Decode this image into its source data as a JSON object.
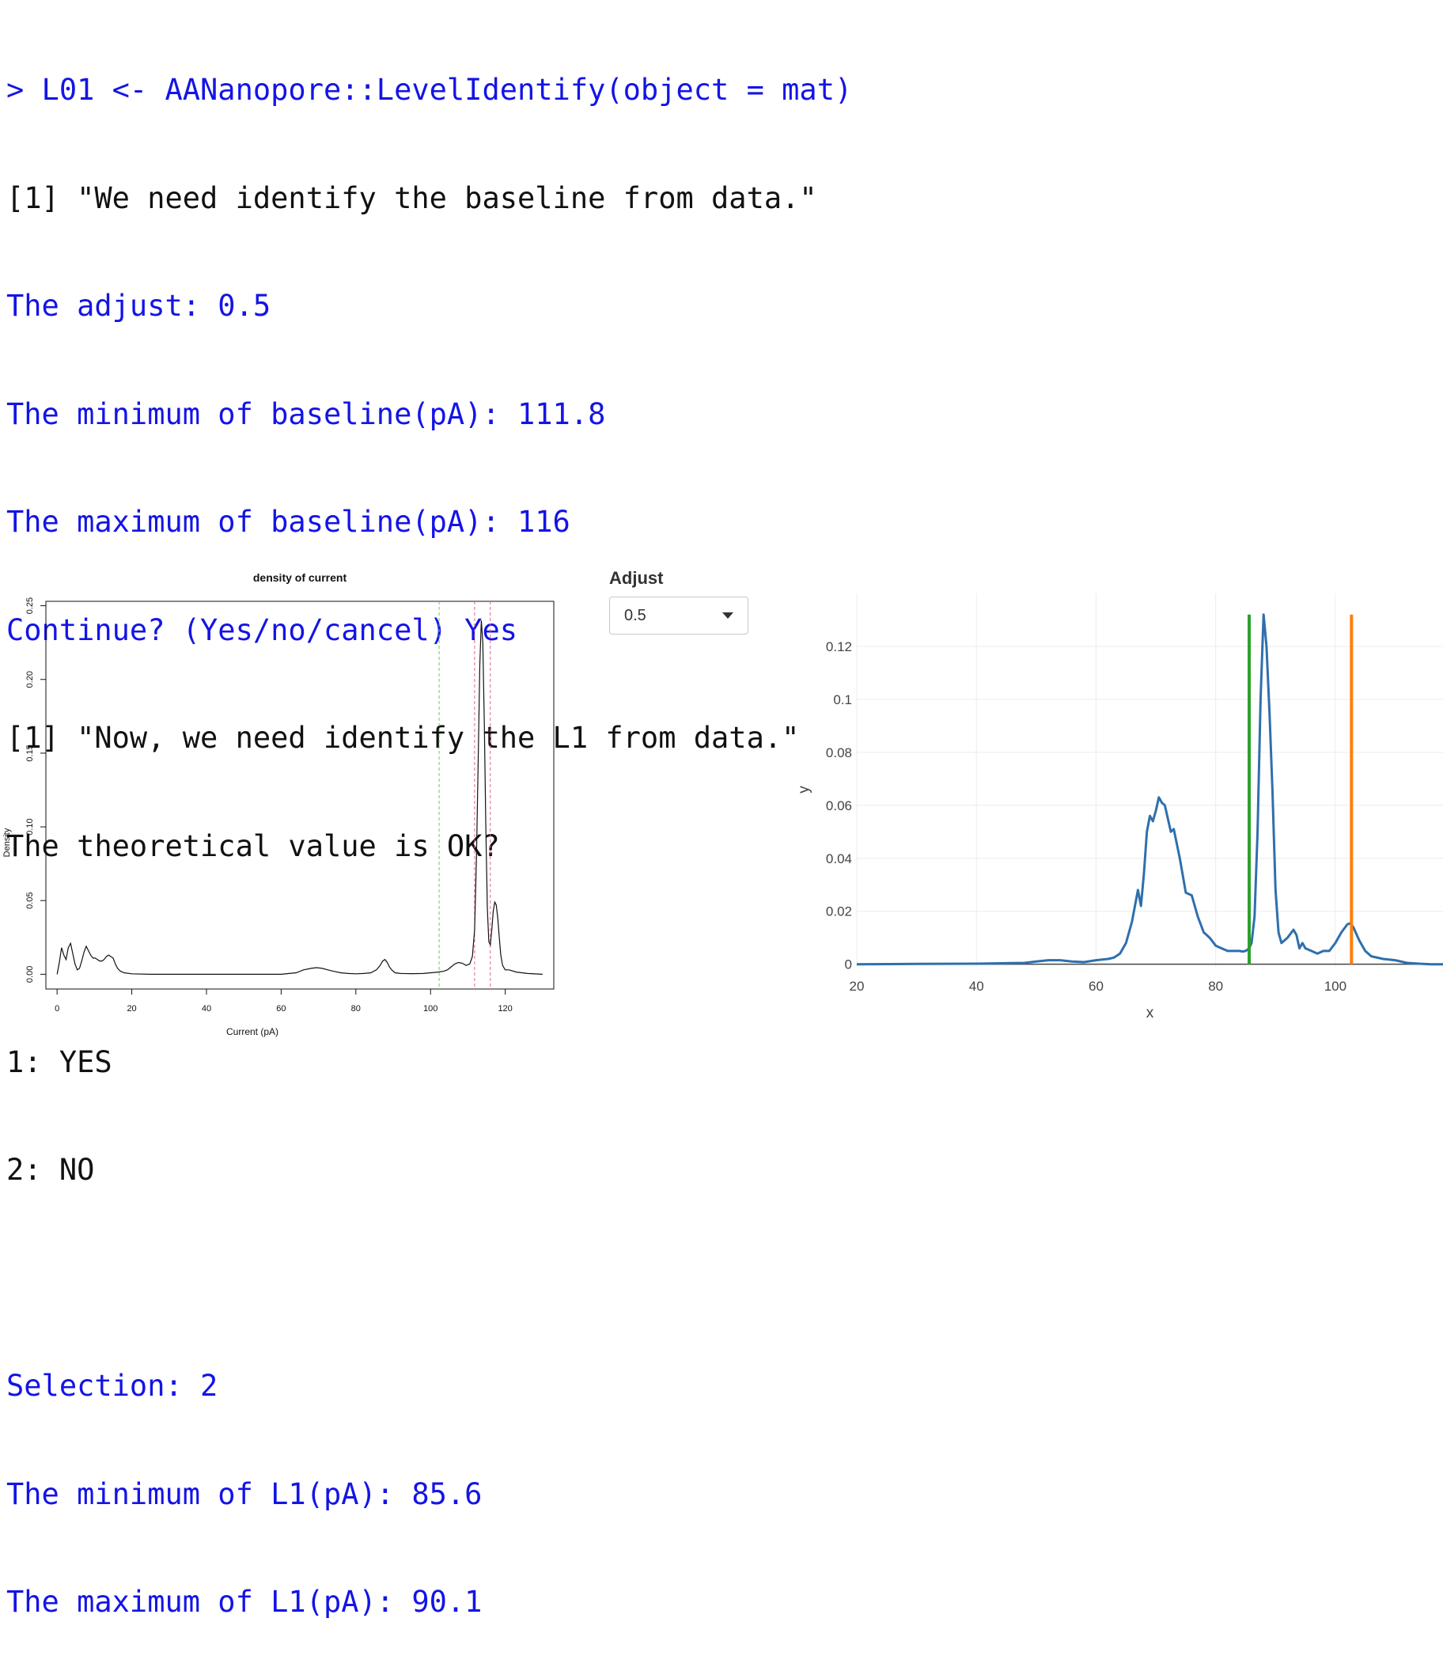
{
  "console": {
    "lines": [
      {
        "text": "> L01 <- AANanopore::LevelIdentify(object = mat)",
        "color": "#1414e6"
      },
      {
        "text": "[1] \"We need identify the baseline from data.\"",
        "color": "#111111"
      },
      {
        "text": "The adjust: 0.5",
        "color": "#1414e6"
      },
      {
        "text": "The minimum of baseline(pA): 111.8",
        "color": "#1414e6"
      },
      {
        "text": "The maximum of baseline(pA): 116",
        "color": "#1414e6"
      },
      {
        "text": "Continue? (Yes/no/cancel) Yes",
        "color": "#1414e6"
      },
      {
        "text": "[1] \"Now, we need identify the L1 from data.\"",
        "color": "#111111"
      },
      {
        "text": "The theoretical value is OK?",
        "color": "#111111"
      },
      {
        "text": "",
        "color": "#111111"
      },
      {
        "text": "1: YES",
        "color": "#111111"
      },
      {
        "text": "2: NO",
        "color": "#111111"
      },
      {
        "text": "",
        "color": "#111111"
      },
      {
        "text": "Selection: 2",
        "color": "#1414e6"
      },
      {
        "text": "The minimum of L1(pA): 85.6",
        "color": "#1414e6"
      },
      {
        "text": "The maximum of L1(pA): 90.1",
        "color": "#1414e6"
      }
    ]
  },
  "adjust_control": {
    "label": "Adjust",
    "selected": "0.5"
  },
  "chart_data": [
    {
      "type": "line",
      "title": "density of current",
      "xlabel": "Current (pA)",
      "ylabel": "Density",
      "xlim": [
        -3,
        133
      ],
      "ylim": [
        -0.01,
        0.253
      ],
      "x_ticks": [
        0,
        20,
        40,
        60,
        80,
        100,
        120
      ],
      "y_ticks": [
        0.0,
        0.05,
        0.1,
        0.15,
        0.2,
        0.25
      ],
      "y_tick_labels": [
        "0.00",
        "0.05",
        "0.10",
        "0.15",
        "0.20",
        "0.25"
      ],
      "grid": false,
      "vlines": [
        {
          "x": 102.3,
          "color": "#66cc66",
          "style": "dashed"
        },
        {
          "x": 111.8,
          "color": "#dd6699",
          "style": "dashed"
        },
        {
          "x": 116.0,
          "color": "#dd6699",
          "style": "dashed"
        }
      ],
      "series": [
        {
          "color": "#111111",
          "x": [
            0,
            0.6,
            1.2,
            1.8,
            2.4,
            3.0,
            3.6,
            4.2,
            4.8,
            5.4,
            6.0,
            6.6,
            7.2,
            7.8,
            8.4,
            9.0,
            9.6,
            10.2,
            10.8,
            11.4,
            12.0,
            12.6,
            13.2,
            13.8,
            14.4,
            15.0,
            15.6,
            16.2,
            17.0,
            18.0,
            20,
            25,
            30,
            40,
            50,
            60,
            64,
            66,
            68,
            69.5,
            71,
            72.5,
            74,
            76,
            78,
            80,
            82,
            84,
            85.5,
            86.5,
            87.2,
            87.8,
            88.4,
            89.0,
            89.6,
            90.5,
            92,
            95,
            98,
            100,
            102,
            103.5,
            104.5,
            105.5,
            106.5,
            107.5,
            108.5,
            109.5,
            110.5,
            111.2,
            111.8,
            112.3,
            112.8,
            113.2,
            113.6,
            114.0,
            114.4,
            114.8,
            115.2,
            115.6,
            116.0,
            116.4,
            116.8,
            117.2,
            117.6,
            118.0,
            118.4,
            118.8,
            119.3,
            120,
            121,
            123,
            126,
            130
          ],
          "y": [
            0.0,
            0.008,
            0.018,
            0.013,
            0.01,
            0.018,
            0.021,
            0.014,
            0.007,
            0.003,
            0.004,
            0.009,
            0.015,
            0.019,
            0.016,
            0.013,
            0.011,
            0.011,
            0.01,
            0.009,
            0.009,
            0.01,
            0.012,
            0.013,
            0.012,
            0.011,
            0.007,
            0.004,
            0.002,
            0.001,
            0.0003,
            0.0,
            0.0,
            0.0,
            0.0,
            0.0,
            0.001,
            0.003,
            0.004,
            0.0045,
            0.004,
            0.003,
            0.002,
            0.001,
            0.0005,
            0.0003,
            0.0005,
            0.001,
            0.003,
            0.006,
            0.009,
            0.01,
            0.008,
            0.005,
            0.003,
            0.001,
            0.0005,
            0.0004,
            0.0005,
            0.001,
            0.0015,
            0.002,
            0.003,
            0.005,
            0.007,
            0.008,
            0.0075,
            0.006,
            0.007,
            0.012,
            0.03,
            0.08,
            0.15,
            0.21,
            0.24,
            0.225,
            0.17,
            0.1,
            0.045,
            0.022,
            0.02,
            0.03,
            0.043,
            0.049,
            0.047,
            0.038,
            0.025,
            0.013,
            0.006,
            0.003,
            0.003,
            0.0015,
            0.0005,
            0.0
          ]
        }
      ]
    },
    {
      "type": "line",
      "xlabel": "x",
      "ylabel": "y",
      "xlim": [
        20,
        118
      ],
      "ylim": [
        -0.001,
        0.14
      ],
      "x_ticks": [
        20,
        40,
        60,
        80,
        100
      ],
      "y_ticks": [
        0,
        0.02,
        0.04,
        0.06,
        0.08,
        0.1,
        0.12
      ],
      "y_tick_labels": [
        "0",
        "0.02",
        "0.04",
        "0.06",
        "0.08",
        "0.1",
        "0.12"
      ],
      "grid": true,
      "vlines": [
        {
          "x": 85.6,
          "color": "#2ca02c",
          "y_top": 0.132
        },
        {
          "x": 102.7,
          "color": "#ff7f0e",
          "y_top": 0.132
        }
      ],
      "series": [
        {
          "color": "#2f6fad",
          "x": [
            20,
            30,
            40,
            48,
            50,
            52,
            54,
            56,
            58,
            60,
            62,
            63,
            64,
            65,
            66,
            66.5,
            67,
            67.5,
            68,
            68.5,
            69,
            69.5,
            70,
            70.5,
            71,
            71.5,
            72,
            72.5,
            73,
            74,
            75,
            76,
            77,
            78,
            79,
            80,
            81,
            82,
            83,
            84,
            84.5,
            85,
            85.6,
            86,
            86.5,
            87,
            87.5,
            88,
            88.5,
            89,
            89.5,
            90,
            90.5,
            91,
            92,
            93,
            93.5,
            94,
            94.5,
            95,
            96,
            97,
            98,
            99,
            100,
            101,
            102,
            102.5,
            103,
            104,
            105,
            106,
            108,
            110,
            112,
            114,
            116,
            118
          ],
          "y": [
            0,
            0.0001,
            0.0002,
            0.0005,
            0.001,
            0.0015,
            0.0015,
            0.001,
            0.0008,
            0.0015,
            0.002,
            0.0025,
            0.004,
            0.008,
            0.016,
            0.022,
            0.028,
            0.022,
            0.034,
            0.05,
            0.056,
            0.054,
            0.058,
            0.063,
            0.061,
            0.06,
            0.055,
            0.05,
            0.051,
            0.04,
            0.027,
            0.026,
            0.018,
            0.012,
            0.01,
            0.007,
            0.006,
            0.005,
            0.005,
            0.005,
            0.0048,
            0.005,
            0.006,
            0.008,
            0.018,
            0.05,
            0.1,
            0.132,
            0.12,
            0.095,
            0.065,
            0.028,
            0.012,
            0.008,
            0.01,
            0.013,
            0.011,
            0.006,
            0.008,
            0.006,
            0.005,
            0.004,
            0.005,
            0.005,
            0.008,
            0.012,
            0.015,
            0.0155,
            0.014,
            0.009,
            0.005,
            0.003,
            0.002,
            0.0015,
            0.0005,
            0.0002,
            0,
            0
          ]
        }
      ]
    }
  ]
}
